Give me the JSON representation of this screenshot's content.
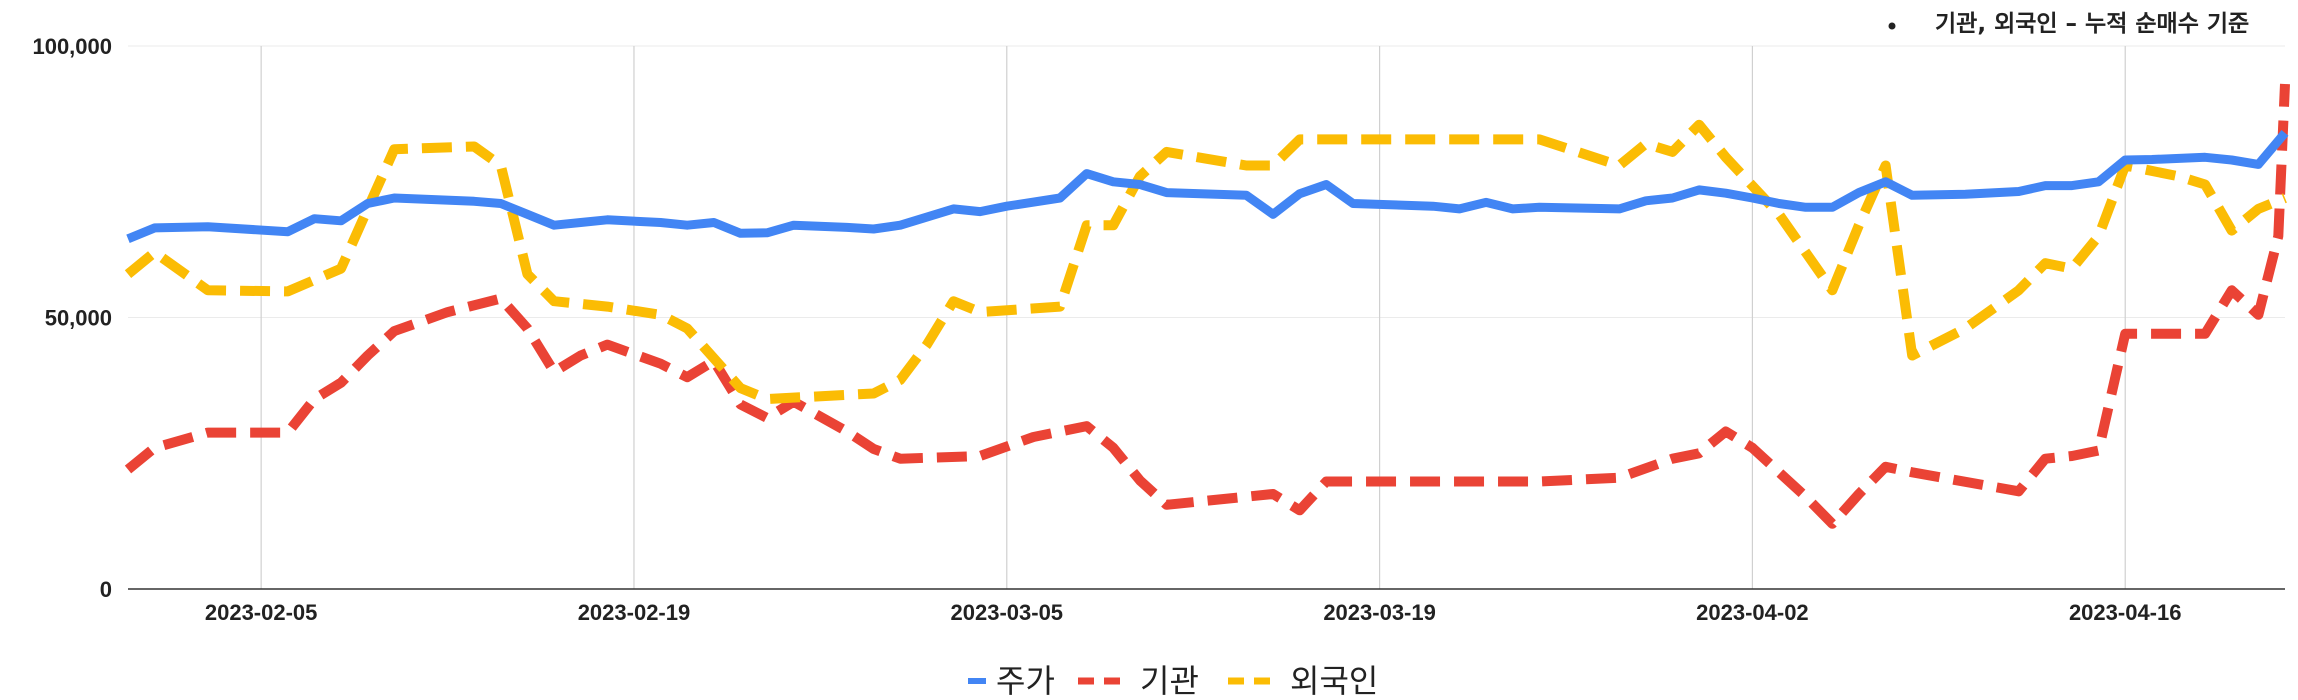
{
  "annotation": "기관, 외국인 – 누적 순매수 기준",
  "chart_data": {
    "type": "line",
    "ylim": [
      0,
      100000
    ],
    "y_ticks": [
      {
        "value": 0,
        "label": "0"
      },
      {
        "value": 50000,
        "label": "50,000"
      },
      {
        "value": 100000,
        "label": "100,000"
      }
    ],
    "x_range": [
      "2023-01-31",
      "2023-04-22"
    ],
    "x_ticks": [
      "2023-02-05",
      "2023-02-19",
      "2023-03-05",
      "2023-03-19",
      "2023-04-02",
      "2023-04-16"
    ],
    "grid": true,
    "legend_position": "bottom",
    "series": [
      {
        "name": "주가",
        "color": "#4285F4",
        "dash": "solid",
        "points": [
          [
            "2023-01-31",
            64500
          ],
          [
            "2023-02-01",
            66500
          ],
          [
            "2023-02-03",
            66700
          ],
          [
            "2023-02-06",
            65800
          ],
          [
            "2023-02-07",
            68200
          ],
          [
            "2023-02-08",
            67800
          ],
          [
            "2023-02-09",
            71000
          ],
          [
            "2023-02-10",
            72000
          ],
          [
            "2023-02-13",
            71400
          ],
          [
            "2023-02-14",
            71000
          ],
          [
            "2023-02-15",
            69000
          ],
          [
            "2023-02-16",
            67000
          ],
          [
            "2023-02-17",
            67500
          ],
          [
            "2023-02-18",
            68000
          ],
          [
            "2023-02-20",
            67500
          ],
          [
            "2023-02-21",
            67000
          ],
          [
            "2023-02-22",
            67500
          ],
          [
            "2023-02-23",
            65500
          ],
          [
            "2023-02-24",
            65600
          ],
          [
            "2023-02-25",
            67000
          ],
          [
            "2023-02-27",
            66600
          ],
          [
            "2023-02-28",
            66300
          ],
          [
            "2023-03-01",
            67000
          ],
          [
            "2023-03-03",
            70000
          ],
          [
            "2023-03-04",
            69500
          ],
          [
            "2023-03-05",
            70500
          ],
          [
            "2023-03-07",
            72000
          ],
          [
            "2023-03-08",
            76500
          ],
          [
            "2023-03-09",
            75000
          ],
          [
            "2023-03-10",
            74500
          ],
          [
            "2023-03-11",
            73000
          ],
          [
            "2023-03-14",
            72500
          ],
          [
            "2023-03-15",
            69000
          ],
          [
            "2023-03-16",
            72800
          ],
          [
            "2023-03-17",
            74500
          ],
          [
            "2023-03-18",
            71000
          ],
          [
            "2023-03-21",
            70500
          ],
          [
            "2023-03-22",
            70000
          ],
          [
            "2023-03-23",
            71200
          ],
          [
            "2023-03-24",
            70000
          ],
          [
            "2023-03-25",
            70300
          ],
          [
            "2023-03-28",
            70000
          ],
          [
            "2023-03-29",
            71500
          ],
          [
            "2023-03-30",
            72000
          ],
          [
            "2023-03-31",
            73500
          ],
          [
            "2023-04-01",
            72900
          ],
          [
            "2023-04-02",
            72000
          ],
          [
            "2023-04-03",
            71000
          ],
          [
            "2023-04-04",
            70300
          ],
          [
            "2023-04-05",
            70300
          ],
          [
            "2023-04-06",
            73000
          ],
          [
            "2023-04-07",
            75000
          ],
          [
            "2023-04-08",
            72500
          ],
          [
            "2023-04-10",
            72700
          ],
          [
            "2023-04-12",
            73200
          ],
          [
            "2023-04-13",
            74300
          ],
          [
            "2023-04-14",
            74300
          ],
          [
            "2023-04-15",
            75000
          ],
          [
            "2023-04-16",
            79000
          ],
          [
            "2023-04-17",
            79100
          ],
          [
            "2023-04-19",
            79500
          ],
          [
            "2023-04-20",
            79000
          ],
          [
            "2023-04-21",
            78200
          ],
          [
            "2023-04-22",
            84000
          ]
        ]
      },
      {
        "name": "기관",
        "color": "#EA4335",
        "dash": "dashed",
        "points": [
          [
            "2023-01-31",
            22000
          ],
          [
            "2023-02-01",
            26000
          ],
          [
            "2023-02-03",
            28800
          ],
          [
            "2023-02-06",
            28800
          ],
          [
            "2023-02-07",
            35000
          ],
          [
            "2023-02-08",
            38000
          ],
          [
            "2023-02-09",
            43000
          ],
          [
            "2023-02-10",
            47500
          ],
          [
            "2023-02-12",
            51000
          ],
          [
            "2023-02-14",
            53500
          ],
          [
            "2023-02-15",
            48000
          ],
          [
            "2023-02-16",
            40000
          ],
          [
            "2023-02-17",
            43000
          ],
          [
            "2023-02-18",
            45000
          ],
          [
            "2023-02-20",
            41500
          ],
          [
            "2023-02-21",
            39000
          ],
          [
            "2023-02-22",
            42000
          ],
          [
            "2023-02-23",
            34000
          ],
          [
            "2023-02-24",
            31500
          ],
          [
            "2023-02-25",
            34500
          ],
          [
            "2023-02-27",
            29000
          ],
          [
            "2023-02-28",
            25800
          ],
          [
            "2023-03-01",
            24000
          ],
          [
            "2023-03-04",
            24500
          ],
          [
            "2023-03-06",
            28000
          ],
          [
            "2023-03-08",
            30000
          ],
          [
            "2023-03-09",
            26000
          ],
          [
            "2023-03-10",
            20000
          ],
          [
            "2023-03-11",
            15500
          ],
          [
            "2023-03-15",
            17500
          ],
          [
            "2023-03-16",
            14500
          ],
          [
            "2023-03-17",
            19800
          ],
          [
            "2023-03-21",
            19800
          ],
          [
            "2023-03-25",
            19800
          ],
          [
            "2023-03-28",
            20500
          ],
          [
            "2023-03-30",
            24000
          ],
          [
            "2023-03-31",
            25000
          ],
          [
            "2023-04-01",
            29000
          ],
          [
            "2023-04-02",
            26000
          ],
          [
            "2023-04-04",
            17000
          ],
          [
            "2023-04-05",
            12000
          ],
          [
            "2023-04-06",
            17500
          ],
          [
            "2023-04-07",
            22500
          ],
          [
            "2023-04-08",
            21500
          ],
          [
            "2023-04-12",
            18000
          ],
          [
            "2023-04-13",
            24000
          ],
          [
            "2023-04-14",
            24500
          ],
          [
            "2023-04-15",
            25500
          ],
          [
            "2023-04-16",
            47000
          ],
          [
            "2023-04-19",
            47000
          ],
          [
            "2023-04-20",
            55000
          ],
          [
            "2023-04-21",
            50500
          ],
          [
            "2023-04-21T18",
            65000
          ],
          [
            "2023-04-22",
            93000
          ]
        ]
      },
      {
        "name": "외국인",
        "color": "#FBBC04",
        "dash": "dashed",
        "points": [
          [
            "2023-01-31",
            58000
          ],
          [
            "2023-02-01",
            62000
          ],
          [
            "2023-02-03",
            55000
          ],
          [
            "2023-02-06",
            54800
          ],
          [
            "2023-02-08",
            59000
          ],
          [
            "2023-02-10",
            81000
          ],
          [
            "2023-02-13",
            81500
          ],
          [
            "2023-02-14",
            78000
          ],
          [
            "2023-02-15",
            58000
          ],
          [
            "2023-02-16",
            53000
          ],
          [
            "2023-02-18",
            52000
          ],
          [
            "2023-02-20",
            50500
          ],
          [
            "2023-02-21",
            48000
          ],
          [
            "2023-02-23",
            37000
          ],
          [
            "2023-02-24",
            35000
          ],
          [
            "2023-02-28",
            36000
          ],
          [
            "2023-03-01",
            38500
          ],
          [
            "2023-03-02",
            45000
          ],
          [
            "2023-03-03",
            53000
          ],
          [
            "2023-03-04",
            51000
          ],
          [
            "2023-03-07",
            52000
          ],
          [
            "2023-03-08",
            67000
          ],
          [
            "2023-03-09",
            67000
          ],
          [
            "2023-03-10",
            76000
          ],
          [
            "2023-03-11",
            80500
          ],
          [
            "2023-03-14",
            78000
          ],
          [
            "2023-03-15",
            78000
          ],
          [
            "2023-03-16",
            82800
          ],
          [
            "2023-03-25",
            82800
          ],
          [
            "2023-03-28",
            78000
          ],
          [
            "2023-03-29",
            82000
          ],
          [
            "2023-03-30",
            80500
          ],
          [
            "2023-03-31",
            85500
          ],
          [
            "2023-04-01",
            79500
          ],
          [
            "2023-04-03",
            69000
          ],
          [
            "2023-04-05",
            55000
          ],
          [
            "2023-04-06",
            67000
          ],
          [
            "2023-04-07",
            78000
          ],
          [
            "2023-04-08",
            43000
          ],
          [
            "2023-04-10",
            48000
          ],
          [
            "2023-04-12",
            55000
          ],
          [
            "2023-04-13",
            60000
          ],
          [
            "2023-04-14",
            59000
          ],
          [
            "2023-04-15",
            65000
          ],
          [
            "2023-04-16",
            78000
          ],
          [
            "2023-04-18",
            76000
          ],
          [
            "2023-04-19",
            74500
          ],
          [
            "2023-04-20",
            66000
          ],
          [
            "2023-04-21",
            70000
          ],
          [
            "2023-04-22",
            72000
          ]
        ]
      }
    ]
  }
}
